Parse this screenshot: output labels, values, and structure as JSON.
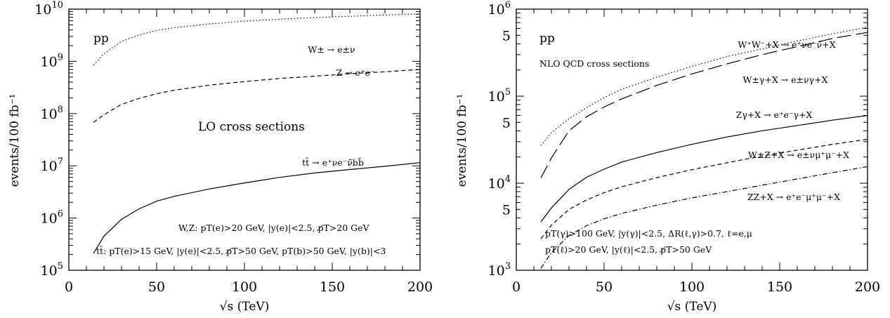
{
  "chart_data": [
    {
      "type": "line",
      "title": "",
      "xlabel": "√s (TeV)",
      "ylabel": "events/100 fb⁻¹",
      "xlim": [
        0,
        200
      ],
      "ylim": [
        100000,
        10000000000
      ],
      "yscale": "log",
      "x_ticks": [
        "0",
        "50",
        "100",
        "150",
        "200"
      ],
      "y_ticks": [
        {
          "base": "10",
          "exp": "5"
        },
        {
          "base": "10",
          "exp": "6"
        },
        {
          "base": "10",
          "exp": "7"
        },
        {
          "base": "10",
          "exp": "8"
        },
        {
          "base": "10",
          "exp": "9"
        },
        {
          "base": "10",
          "exp": "10"
        }
      ],
      "annotations": {
        "process": "pp",
        "section": "LO cross sections",
        "cuts_wz": "W,Z: pT(e)>20 GeV, |y(e)|<2.5, p̸T>20 GeV",
        "cuts_tt": "tt̄: pT(e)>15 GeV, |y(e)|<2.5, p̸T>50 GeV, pT(b)>50 GeV, |y(b)|<3"
      },
      "series": [
        {
          "name": "W± → e±ν",
          "style": "dotted",
          "x": [
            14,
            20,
            30,
            40,
            50,
            60,
            80,
            100,
            120,
            140,
            160,
            180,
            200
          ],
          "y": [
            850000000,
            1400000000,
            2400000000,
            3200000000,
            3900000000,
            4400000000,
            5200000000,
            5900000000,
            6400000000,
            6900000000,
            7300000000,
            7700000000,
            8100000000
          ]
        },
        {
          "name": "Z → e⁺e⁻",
          "style": "dashed",
          "x": [
            14,
            20,
            30,
            40,
            50,
            60,
            80,
            100,
            120,
            140,
            160,
            180,
            200
          ],
          "y": [
            68000000,
            95000000,
            150000000,
            195000000,
            240000000,
            280000000,
            350000000,
            410000000,
            470000000,
            520000000,
            580000000,
            630000000,
            700000000
          ]
        },
        {
          "name": "tt̄ → e⁺νe⁻ν̄bb̄",
          "style": "solid",
          "x": [
            14,
            20,
            30,
            40,
            50,
            60,
            80,
            100,
            120,
            140,
            160,
            180,
            200
          ],
          "y": [
            210000,
            450000,
            950000,
            1500000,
            2100000,
            2600000,
            3600000,
            4700000,
            6000000,
            7300000,
            8500000,
            9800000,
            11500000
          ]
        }
      ]
    },
    {
      "type": "line",
      "title": "",
      "xlabel": "√s (TeV)",
      "ylabel": "events/100 fb⁻¹",
      "xlim": [
        0,
        200
      ],
      "ylim": [
        1000,
        1000000
      ],
      "yscale": "log",
      "x_ticks": [
        "0",
        "50",
        "100",
        "150",
        "200"
      ],
      "y_ticks": [
        {
          "base": "10",
          "exp": "3"
        },
        {
          "base": "5",
          "exp": ""
        },
        {
          "base": "10",
          "exp": "4"
        },
        {
          "base": "5",
          "exp": ""
        },
        {
          "base": "10",
          "exp": "5"
        },
        {
          "base": "5",
          "exp": ""
        },
        {
          "base": "10",
          "exp": "6"
        }
      ],
      "annotations": {
        "process": "pp",
        "section": "NLO QCD cross sections",
        "cuts_photon": "pT(γ)>100 GeV, |y(γ)|<2.5, ΔR(ℓ,γ)>0.7, ℓ=e,μ",
        "cuts_lepton": "pT(ℓ)>20 GeV, |y(ℓ)|<2.5, p̸T>50 GeV"
      },
      "series": [
        {
          "name": "W⁺W⁻+X → e⁺νe⁻ν̄+X",
          "style": "dotted",
          "x": [
            14,
            20,
            30,
            40,
            50,
            60,
            80,
            100,
            120,
            140,
            160,
            180,
            200
          ],
          "y": [
            27000,
            38000,
            55000,
            74000,
            96000,
            120000,
            165000,
            220000,
            285000,
            350000,
            430000,
            520000,
            620000
          ]
        },
        {
          "name": "W±γ+X → e±νγ+X",
          "style": "longdash",
          "x": [
            14,
            20,
            30,
            40,
            50,
            60,
            80,
            100,
            120,
            140,
            160,
            180,
            200
          ],
          "y": [
            11500,
            19500,
            40000,
            58000,
            75000,
            93000,
            133000,
            180000,
            235000,
            300000,
            370000,
            460000,
            540000
          ]
        },
        {
          "name": "Zγ+X → e⁺e⁻γ+X",
          "style": "solid",
          "x": [
            14,
            20,
            30,
            40,
            50,
            60,
            80,
            100,
            120,
            140,
            160,
            180,
            200
          ],
          "y": [
            3600,
            5200,
            8500,
            11700,
            14500,
            17500,
            22500,
            28000,
            34000,
            40000,
            46000,
            53000,
            60000
          ]
        },
        {
          "name": "W±Z+X → e±νμ⁺μ⁻+X",
          "style": "dashed",
          "x": [
            14,
            20,
            30,
            40,
            50,
            60,
            80,
            100,
            120,
            140,
            160,
            180,
            200
          ],
          "y": [
            2300,
            3300,
            5000,
            6400,
            7800,
            9100,
            11600,
            14300,
            17200,
            20500,
            24000,
            28000,
            32000
          ]
        },
        {
          "name": "ZZ+X → e⁺e⁻μ⁺μ⁻+X",
          "style": "dashdot",
          "x": [
            14,
            20,
            30,
            40,
            50,
            60,
            80,
            100,
            120,
            140,
            160,
            180,
            200
          ],
          "y": [
            1050,
            1600,
            2500,
            3250,
            3900,
            4500,
            5600,
            6800,
            8000,
            9500,
            11200,
            13200,
            15500
          ]
        }
      ]
    }
  ]
}
